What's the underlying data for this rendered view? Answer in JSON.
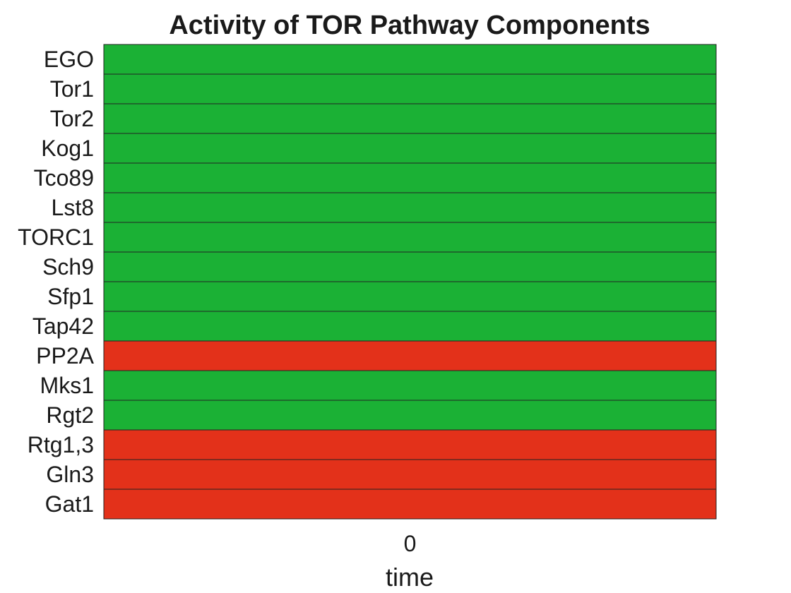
{
  "colors": {
    "on": "#1bb135",
    "off": "#e3311a",
    "border": "#222222"
  },
  "chart_data": {
    "type": "heatmap",
    "title": "Activity of TOR Pathway Components",
    "xlabel": "time",
    "ylabel": "",
    "x": [
      0
    ],
    "x_tick_labels": [
      "0"
    ],
    "rows": [
      "EGO",
      "Tor1",
      "Tor2",
      "Kog1",
      "Tco89",
      "Lst8",
      "TORC1",
      "Sch9",
      "Sfp1",
      "Tap42",
      "PP2A",
      "Mks1",
      "Rgt2",
      "Rtg1,3",
      "Gln3",
      "Gat1"
    ],
    "values": [
      [
        1
      ],
      [
        1
      ],
      [
        1
      ],
      [
        1
      ],
      [
        1
      ],
      [
        1
      ],
      [
        1
      ],
      [
        1
      ],
      [
        1
      ],
      [
        1
      ],
      [
        0
      ],
      [
        1
      ],
      [
        1
      ],
      [
        0
      ],
      [
        0
      ],
      [
        0
      ]
    ],
    "value_colors": {
      "1": "green",
      "0": "red"
    },
    "grid": false,
    "legend": "none"
  }
}
